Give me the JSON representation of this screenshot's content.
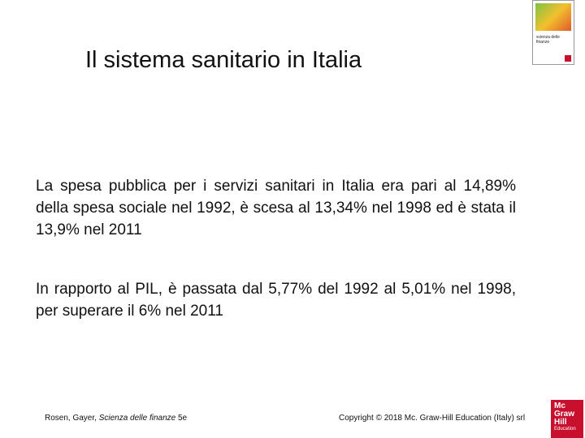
{
  "slide": {
    "title": "Il sistema sanitario in Italia",
    "paragraphs": [
      "La spesa pubblica per i servizi sanitari in Italia era pari al 14,89% della spesa sociale nel 1992, è scesa al 13,34% nel 1998 ed è stata il 13,9%  nel 2011",
      "In rapporto al PIL, è passata dal 5,77% del 1992 al 5,01% nel 1998, per superare il 6% nel 2011"
    ],
    "footer": {
      "authors": "Rosen, Gayer,",
      "book": "Scienza delle finanze",
      "edition": "5e",
      "copyright": "Copyright © 2018 Mc. Graw-Hill Education (Italy) srl"
    },
    "cover": {
      "title": "scienza delle finanze"
    },
    "logo": [
      "Mc",
      "Graw",
      "Hill",
      "Education"
    ]
  }
}
